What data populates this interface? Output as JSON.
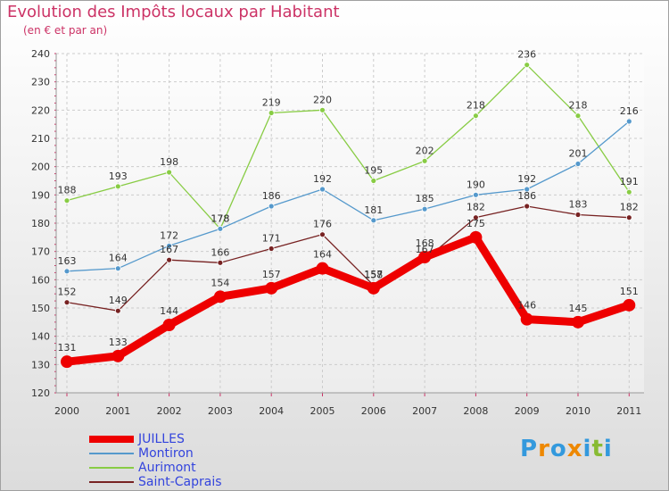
{
  "header": {
    "title": "Evolution des Impôts locaux par Habitant",
    "subtitle": "(en € et par an)"
  },
  "chart_data": {
    "type": "line",
    "title": "Evolution des Impôts locaux par Habitant",
    "subtitle": "(en € et par an)",
    "xlabel": "",
    "ylabel": "",
    "ylim": [
      120,
      240
    ],
    "y_ticks": [
      "120",
      "130",
      "140",
      "150",
      "160",
      "170",
      "180",
      "190",
      "200",
      "210",
      "220",
      "230",
      "240"
    ],
    "categories": [
      "2000",
      "2001",
      "2002",
      "2003",
      "2004",
      "2005",
      "2006",
      "2007",
      "2008",
      "2009",
      "2010",
      "2011"
    ],
    "grid": true,
    "legend_position": "bottom-left",
    "series": [
      {
        "name": "JUILLES",
        "color": "#ee0000",
        "width": 9,
        "marker": 7,
        "values": [
          131,
          133,
          144,
          154,
          157,
          164,
          157,
          168,
          175,
          146,
          145,
          151
        ]
      },
      {
        "name": "Montiron",
        "color": "#5599cc",
        "width": 1.3,
        "marker": 3,
        "values": [
          163,
          164,
          172,
          178,
          186,
          192,
          181,
          185,
          190,
          192,
          201,
          216
        ]
      },
      {
        "name": "Aurimont",
        "color": "#88cc44",
        "width": 1.3,
        "marker": 3,
        "values": [
          188,
          193,
          198,
          178,
          219,
          220,
          195,
          202,
          218,
          236,
          218,
          191
        ]
      },
      {
        "name": "Saint-Caprais",
        "color": "#772222",
        "width": 1.3,
        "marker": 3,
        "values": [
          152,
          149,
          167,
          166,
          171,
          176,
          158,
          167,
          182,
          186,
          183,
          182
        ]
      }
    ]
  },
  "legend": [
    {
      "label": "JUILLES"
    },
    {
      "label": "Montiron"
    },
    {
      "label": "Aurimont"
    },
    {
      "label": "Saint-Caprais"
    }
  ],
  "branding": {
    "letters": [
      "P",
      "r",
      "o",
      "x",
      "i",
      "t",
      "i"
    ],
    "colors": [
      "#3399dd",
      "#ee8800",
      "#3399dd",
      "#ee8800",
      "#3399dd",
      "#88bb33",
      "#3399dd"
    ]
  }
}
